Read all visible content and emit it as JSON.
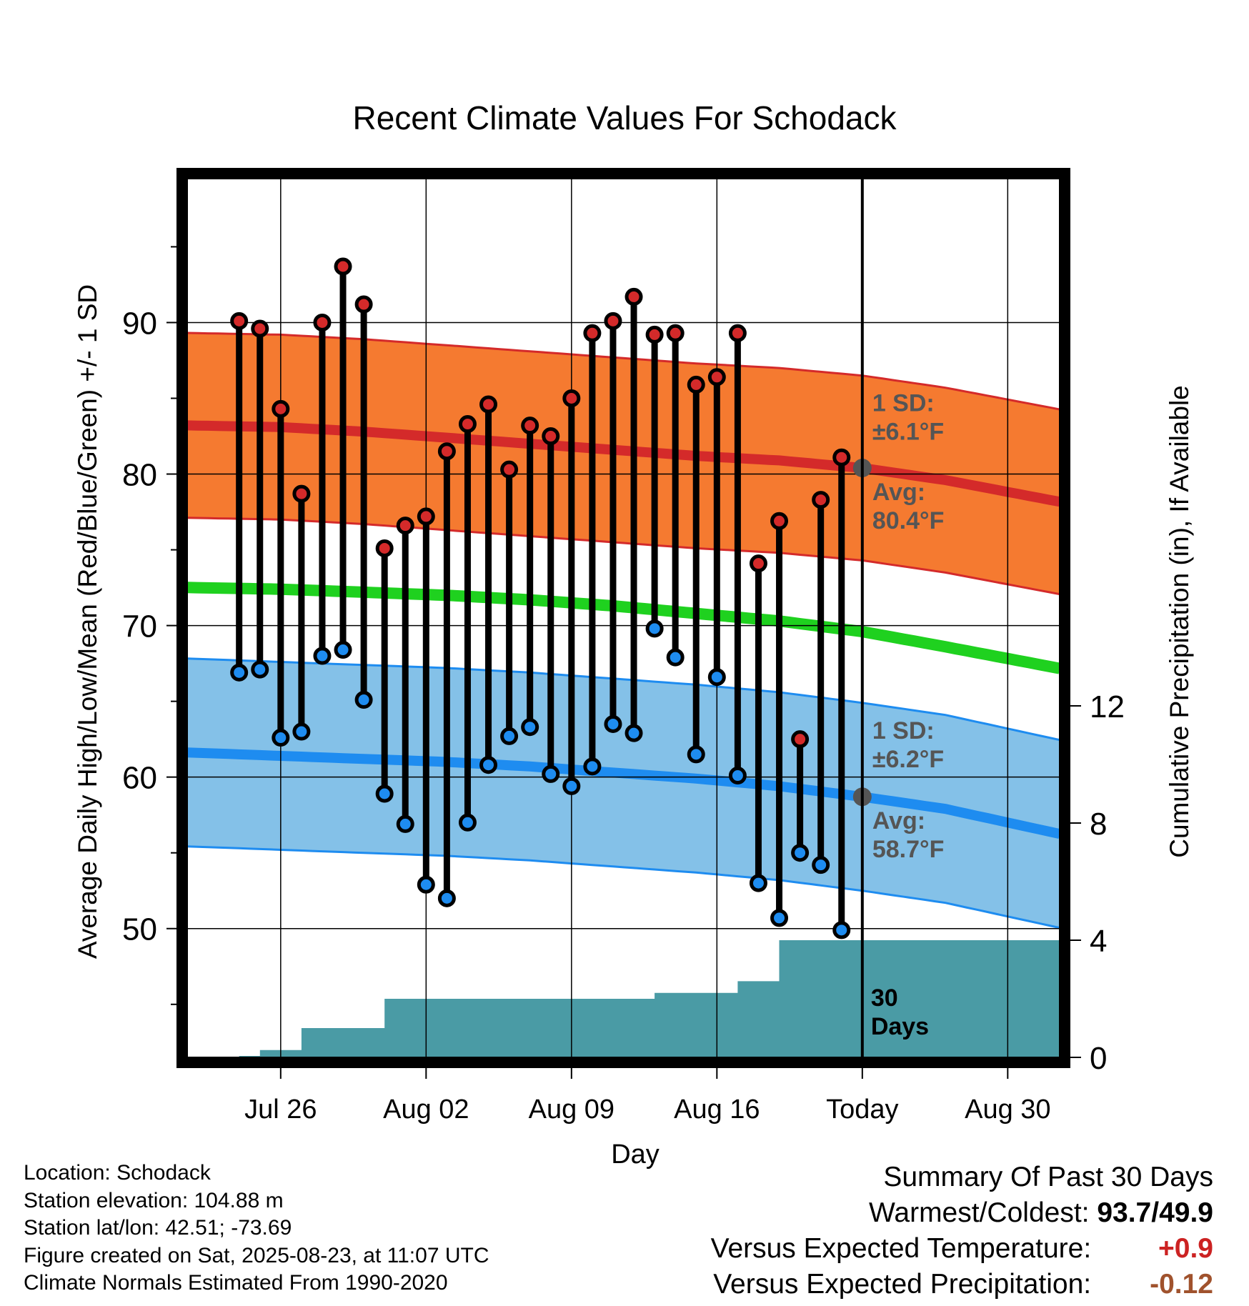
{
  "chart_data": {
    "type": "line",
    "title": "Recent Climate Values For Schodack",
    "xlabel": "Day",
    "ylabel_left": "Average Daily High/Low/Mean (Red/Blue/Green) +/- 1 SD",
    "ylabel_right": "Cumulative Precipitation (in), If Available",
    "x_range_days": [
      -32.5,
      9.5
    ],
    "ylim_left": [
      41.5,
      99.5
    ],
    "ylim_right": [
      0,
      30
    ],
    "x_ticks": [
      {
        "day": -28,
        "label": "Jul 26"
      },
      {
        "day": -21,
        "label": "Aug 02"
      },
      {
        "day": -14,
        "label": "Aug 09"
      },
      {
        "day": -7,
        "label": "Aug 16"
      },
      {
        "day": 0,
        "label": "Today"
      },
      {
        "day": 7,
        "label": "Aug 30"
      }
    ],
    "y_ticks_left": [
      50,
      60,
      70,
      80,
      90
    ],
    "y_ticks_right": [
      0,
      4,
      8,
      12
    ],
    "today_label": "30\nDays",
    "grid": true,
    "colors": {
      "high_band": "#f57a30",
      "high_mean": "#d42a2a",
      "low_band": "#84c1e8",
      "low_mean": "#1e8cf0",
      "mean": "#1fd11f",
      "precip": "#4a9ba5",
      "high_dot": "#d42a2a",
      "low_dot": "#1e8cf0",
      "today_dot": "#555555"
    },
    "normals": {
      "days": [
        -32,
        -28,
        -24,
        -20,
        -16,
        -12,
        -8,
        -4,
        0,
        4,
        9
      ],
      "high_mean": [
        83.2,
        83.1,
        82.8,
        82.4,
        82.0,
        81.6,
        81.2,
        80.9,
        80.4,
        79.6,
        78.3
      ],
      "high_sd": 6.1,
      "low_mean": [
        61.6,
        61.4,
        61.2,
        61.0,
        60.7,
        60.3,
        59.9,
        59.4,
        58.7,
        57.9,
        56.4
      ],
      "low_sd": 6.2,
      "mean": [
        72.5,
        72.4,
        72.2,
        72.0,
        71.7,
        71.3,
        70.8,
        70.3,
        69.6,
        68.6,
        67.3
      ]
    },
    "series": [
      {
        "name": "High",
        "days": [
          -30,
          -29,
          -28,
          -27,
          -26,
          -25,
          -24,
          -23,
          -22,
          -21,
          -20,
          -19,
          -18,
          -17,
          -16,
          -15,
          -14,
          -13,
          -12,
          -11,
          -10,
          -9,
          -8,
          -7,
          -6,
          -5,
          -4,
          -3,
          -2,
          -1
        ],
        "values": [
          90.1,
          89.6,
          84.3,
          78.7,
          90.0,
          93.7,
          91.2,
          75.1,
          76.6,
          77.2,
          81.5,
          83.3,
          84.6,
          80.3,
          83.2,
          82.5,
          85.0,
          89.3,
          90.1,
          91.7,
          89.2,
          89.3,
          85.9,
          86.4,
          89.3,
          74.1,
          76.9,
          62.5,
          78.3,
          81.1
        ]
      },
      {
        "name": "Low",
        "days": [
          -30,
          -29,
          -28,
          -27,
          -26,
          -25,
          -24,
          -23,
          -22,
          -21,
          -20,
          -19,
          -18,
          -17,
          -16,
          -15,
          -14,
          -13,
          -12,
          -11,
          -10,
          -9,
          -8,
          -7,
          -6,
          -5,
          -4,
          -3,
          -2,
          -1
        ],
        "values": [
          66.9,
          67.1,
          62.6,
          63.0,
          68.0,
          68.4,
          65.1,
          58.9,
          56.9,
          52.9,
          52.0,
          57.0,
          60.8,
          62.7,
          63.3,
          60.2,
          59.4,
          60.7,
          63.5,
          62.9,
          69.8,
          67.9,
          61.5,
          66.6,
          60.1,
          53.0,
          50.7,
          55.0,
          54.2,
          49.9
        ]
      },
      {
        "name": "Cumulative Precipitation",
        "days": [
          -31,
          -30,
          -29,
          -28,
          -27,
          -26,
          -25,
          -24,
          -23,
          -22,
          -21,
          -20,
          -19,
          -18,
          -17,
          -16,
          -15,
          -14,
          -13,
          -12,
          -11,
          -10,
          -9,
          -8,
          -7,
          -6,
          -5,
          -4,
          -3,
          -2,
          -1,
          0,
          9.5
        ],
        "values": [
          0,
          0.05,
          0.25,
          0.25,
          1.0,
          1.0,
          1.0,
          1.0,
          2.0,
          2.0,
          2.0,
          2.0,
          2.0,
          2.0,
          2.0,
          2.0,
          2.0,
          2.0,
          2.0,
          2.0,
          2.0,
          2.2,
          2.2,
          2.2,
          2.2,
          2.6,
          2.6,
          4.0,
          4.0,
          4.0,
          4.0,
          4.0,
          4.0
        ]
      }
    ],
    "annotations": {
      "high_sd": "1 SD:\n±6.1°F",
      "high_avg": "Avg:\n80.4°F",
      "low_sd": "1 SD:\n±6.2°F",
      "low_avg": "Avg:\n58.7°F"
    }
  },
  "footer": {
    "location": "Location: Schodack",
    "elevation": "Station elevation: 104.88 m",
    "latlon": "Station lat/lon: 42.51; -73.69",
    "created": "Figure created on Sat, 2025-08-23, at 11:07 UTC",
    "normals": "Climate Normals Estimated From 1990-2020"
  },
  "summary": {
    "title": "Summary Of Past 30 Days",
    "warm_label": "Warmest/Coldest:",
    "warm_value": "93.7/49.9",
    "temp_label": "Versus Expected Temperature:",
    "temp_value": "+0.9",
    "precip_label": "Versus Expected Precipitation:",
    "precip_value": "-0.12"
  }
}
